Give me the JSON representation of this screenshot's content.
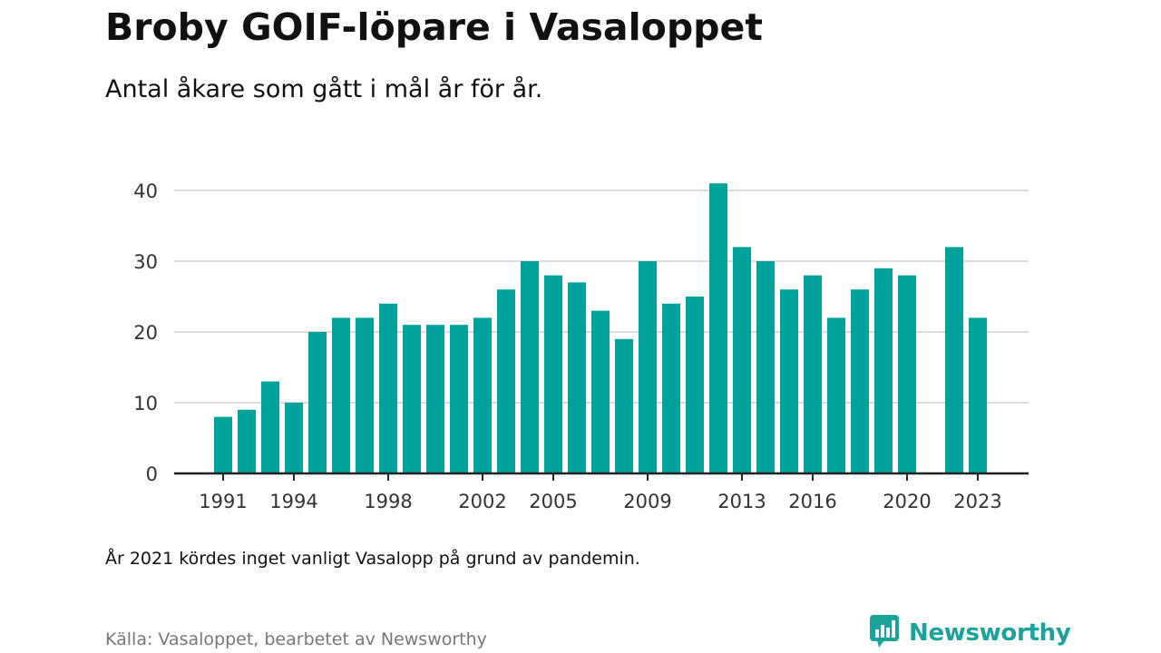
{
  "title": "Broby GOIF-löpare i Vasaloppet",
  "subtitle": "Antal åkare som gått i mål år för år.",
  "note": "År 2021 kördes inget vanligt Vasalopp på grund av pandemin.",
  "source": "Källa: Vasaloppet, bearbetet av Newsworthy",
  "brand": {
    "name": "Newsworthy",
    "icon": "newsworthy-bar-chart-logo-icon"
  },
  "colors": {
    "bar": "#00a29a",
    "grid": "#dddddd",
    "axis": "#222222",
    "tick_text": "#333333",
    "brand": "#1aa39a"
  },
  "chart_data": {
    "type": "bar",
    "x": [
      1991,
      1992,
      1993,
      1994,
      1995,
      1996,
      1997,
      1998,
      1999,
      2000,
      2001,
      2002,
      2003,
      2004,
      2005,
      2006,
      2007,
      2008,
      2009,
      2010,
      2011,
      2012,
      2013,
      2014,
      2015,
      2016,
      2017,
      2018,
      2019,
      2020,
      2021,
      2022,
      2023
    ],
    "values": [
      8,
      9,
      13,
      10,
      20,
      22,
      22,
      24,
      21,
      21,
      21,
      22,
      26,
      30,
      28,
      27,
      23,
      19,
      30,
      24,
      25,
      41,
      32,
      30,
      26,
      28,
      22,
      26,
      29,
      28,
      null,
      32,
      22
    ],
    "xticks": [
      1991,
      1994,
      1998,
      2002,
      2005,
      2009,
      2013,
      2016,
      2020,
      2023
    ],
    "yticks": [
      0,
      10,
      20,
      30,
      40
    ],
    "ylim": [
      0,
      42
    ],
    "xlabel": "",
    "ylabel": "",
    "grid": true,
    "legend": "none"
  }
}
